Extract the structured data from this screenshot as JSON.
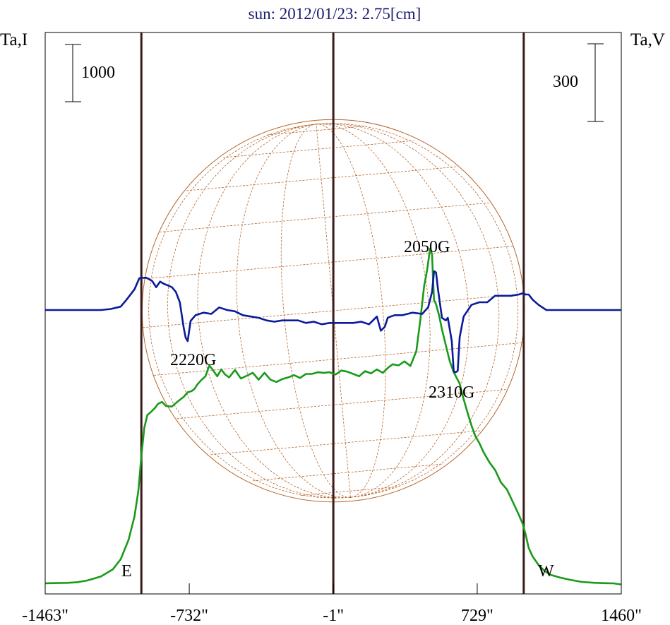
{
  "colors": {
    "title": "#1a1a6e",
    "frame": "#000000",
    "meridian_lines": "#3a1a1a",
    "disk": "#b5652a",
    "intensity": "#1a9a1a",
    "polarization": "#0a1a9a"
  },
  "chart_data": {
    "type": "line",
    "title": "sun: 2012/01/23: 2.75[cm]",
    "ylabel_left": "Ta,I",
    "ylabel_right": "Ta,V",
    "xlim": [
      -1463,
      1460
    ],
    "x_ticks": [
      -1463,
      -732,
      -1,
      729,
      1460
    ],
    "x_tick_labels": [
      "-1463\"",
      "-732\"",
      "-1\"",
      "729\"",
      "1460\""
    ],
    "vertical_lines_arcsec": [
      -975,
      -1,
      965
    ],
    "limb_labels": [
      "E",
      "W"
    ],
    "scale_bar_left": "1000",
    "scale_bar_right": "300",
    "annotations": [
      "2050G",
      "2220G",
      "2310G"
    ],
    "series": [
      {
        "key": "intensity",
        "x": [
          -1463,
          -1420,
          -1350,
          -1300,
          -1250,
          -1180,
          -1120,
          -1080,
          -1040,
          -1010,
          -990,
          -975,
          -960,
          -945,
          -925,
          -905,
          -890,
          -870,
          -850,
          -820,
          -790,
          -760,
          -740,
          -720,
          -705,
          -690,
          -675,
          -650,
          -630,
          -610,
          -590,
          -570,
          -550,
          -530,
          -500,
          -470,
          -440,
          -410,
          -380,
          -350,
          -320,
          -290,
          -260,
          -230,
          -200,
          -170,
          -140,
          -110,
          -80,
          -50,
          -20,
          10,
          40,
          70,
          100,
          130,
          160,
          190,
          220,
          250,
          280,
          300,
          330,
          360,
          390,
          420,
          440,
          460,
          475,
          490,
          500,
          505,
          510,
          520,
          535,
          550,
          570,
          590,
          610,
          640,
          660,
          680,
          700,
          720,
          740,
          760,
          790,
          820,
          850,
          880,
          910,
          940,
          960,
          975,
          990,
          1010,
          1040,
          1070,
          1100,
          1150,
          1200,
          1260,
          1320,
          1380,
          1420,
          1460
        ],
        "values": [
          0.8,
          3.7,
          9,
          20,
          50,
          120,
          245,
          420,
          760,
          1170,
          1620,
          2220,
          2720,
          2940,
          3000,
          3070,
          3140,
          3170,
          3100,
          3090,
          3180,
          3260,
          3340,
          3360,
          3400,
          3480,
          3540,
          3620,
          3810,
          3720,
          3620,
          3740,
          3650,
          3600,
          3730,
          3580,
          3630,
          3680,
          3560,
          3680,
          3560,
          3520,
          3570,
          3600,
          3640,
          3590,
          3660,
          3660,
          3690,
          3680,
          3690,
          3650,
          3720,
          3700,
          3660,
          3620,
          3710,
          3670,
          3740,
          3680,
          3780,
          3830,
          3810,
          3880,
          3800,
          4060,
          4600,
          5200,
          5480,
          5850,
          5750,
          5300,
          4950,
          4880,
          4690,
          4440,
          4160,
          3880,
          3690,
          3490,
          3220,
          2980,
          2760,
          2570,
          2450,
          2300,
          2120,
          1980,
          1760,
          1640,
          1420,
          1200,
          1040,
          850,
          620,
          470,
          320,
          220,
          150,
          100,
          62,
          25,
          10,
          2,
          0,
          -20
        ]
      },
      {
        "key": "polarization",
        "x": [
          -1463,
          -1350,
          -1250,
          -1180,
          -1130,
          -1080,
          -1050,
          -1010,
          -985,
          -970,
          -950,
          -920,
          -900,
          -880,
          -860,
          -840,
          -820,
          -800,
          -790,
          -780,
          -770,
          -760,
          -750,
          -740,
          -725,
          -700,
          -660,
          -620,
          -580,
          -540,
          -500,
          -460,
          -420,
          -380,
          -340,
          -300,
          -260,
          -220,
          -180,
          -140,
          -100,
          -60,
          -20,
          20,
          60,
          100,
          140,
          180,
          220,
          240,
          260,
          275,
          290,
          310,
          350,
          400,
          450,
          480,
          500,
          510,
          520,
          530,
          550,
          570,
          580,
          600,
          610,
          620,
          630,
          640,
          660,
          700,
          740,
          780,
          820,
          860,
          900,
          940,
          960,
          975,
          990,
          1010,
          1040,
          1080,
          1120,
          1160,
          1200,
          1260,
          1320,
          1380,
          1420,
          1460
        ],
        "values": [
          0,
          0,
          0,
          0,
          4,
          13,
          40,
          80,
          123,
          124,
          125,
          112,
          88,
          110,
          101,
          95,
          88,
          70,
          50,
          30,
          -20,
          -70,
          -107,
          -120,
          -42,
          -20,
          -10,
          -15,
          10,
          0,
          -5,
          -20,
          -25,
          -30,
          -40,
          -45,
          -40,
          -40,
          -40,
          -50,
          -45,
          -55,
          -50,
          -50,
          -50,
          -50,
          -45,
          -55,
          -25,
          -80,
          -65,
          -30,
          -25,
          -20,
          -20,
          -10,
          -15,
          10,
          70,
          150,
          145,
          80,
          -30,
          -40,
          -30,
          -120,
          -238,
          -240,
          -235,
          -105,
          -25,
          20,
          30,
          30,
          55,
          55,
          55,
          60,
          65,
          60,
          60,
          40,
          20,
          0,
          0,
          0,
          0,
          0,
          0,
          0,
          0,
          0
        ]
      }
    ]
  }
}
